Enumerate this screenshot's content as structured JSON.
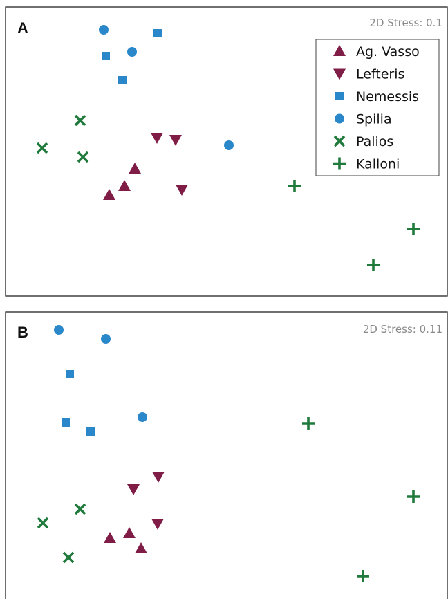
{
  "colors": {
    "ag_vasso": "#7f1d47",
    "lefteris": "#7f1d47",
    "nemessis": "#2a87c9",
    "spilia": "#2a87c9",
    "palios": "#1f7a3c",
    "kalloni": "#1f7a3c"
  },
  "chart_data": [
    {
      "type": "scatter",
      "panel_label": "A",
      "stress_label": "2D Stress: 0.1",
      "legend": {
        "placement": "top-right",
        "entries": [
          "Ag. Vasso",
          "Lefteris",
          "Nemessis",
          "Spilia",
          "Palios",
          "Kalloni"
        ]
      },
      "axes_visible": false,
      "series": [
        {
          "name": "Ag. Vasso",
          "marker": "triangle-up",
          "color": "#7f1d47",
          "points": [
            [
              195,
              244
            ],
            [
              180,
              269
            ],
            [
              158,
              282
            ]
          ]
        },
        {
          "name": "Lefteris",
          "marker": "triangle-down",
          "color": "#7f1d47",
          "points": [
            [
              227,
              199
            ],
            [
              254,
              202
            ],
            [
              263,
              274
            ]
          ]
        },
        {
          "name": "Nemessis",
          "marker": "square",
          "color": "#2a87c9",
          "points": [
            [
              228,
              48
            ],
            [
              153,
              81
            ],
            [
              177,
              116
            ]
          ]
        },
        {
          "name": "Spilia",
          "marker": "circle",
          "color": "#2a87c9",
          "points": [
            [
              150,
              43
            ],
            [
              191,
              75
            ],
            [
              331,
              210
            ]
          ]
        },
        {
          "name": "Palios",
          "marker": "x",
          "color": "#1f7a3c",
          "points": [
            [
              116,
              174
            ],
            [
              61,
              214
            ],
            [
              120,
              227
            ]
          ]
        },
        {
          "name": "Kalloni",
          "marker": "plus",
          "color": "#1f7a3c",
          "points": [
            [
              426,
              269
            ],
            [
              598,
              331
            ],
            [
              540,
              383
            ]
          ]
        }
      ]
    },
    {
      "type": "scatter",
      "panel_label": "B",
      "stress_label": "2D Stress: 0.11",
      "axes_visible": false,
      "series": [
        {
          "name": "Ag. Vasso",
          "marker": "triangle-up",
          "color": "#7f1d47",
          "points": [
            [
              159,
              778
            ],
            [
              187,
              771
            ],
            [
              204,
              793
            ]
          ]
        },
        {
          "name": "Lefteris",
          "marker": "triangle-down",
          "color": "#7f1d47",
          "points": [
            [
              229,
              689
            ],
            [
              193,
              707
            ],
            [
              228,
              757
            ]
          ]
        },
        {
          "name": "Nemessis",
          "marker": "square",
          "color": "#2a87c9",
          "points": [
            [
              101,
              541
            ],
            [
              95,
              611
            ],
            [
              131,
              624
            ]
          ]
        },
        {
          "name": "Spilia",
          "marker": "circle",
          "color": "#2a87c9",
          "points": [
            [
              85,
              477
            ],
            [
              153,
              490
            ],
            [
              206,
              603
            ]
          ]
        },
        {
          "name": "Palios",
          "marker": "x",
          "color": "#1f7a3c",
          "points": [
            [
              116,
              736
            ],
            [
              62,
              756
            ],
            [
              99,
              806
            ]
          ]
        },
        {
          "name": "Kalloni",
          "marker": "plus",
          "color": "#1f7a3c",
          "points": [
            [
              446,
              612
            ],
            [
              598,
              718
            ],
            [
              525,
              833
            ]
          ]
        }
      ]
    }
  ]
}
